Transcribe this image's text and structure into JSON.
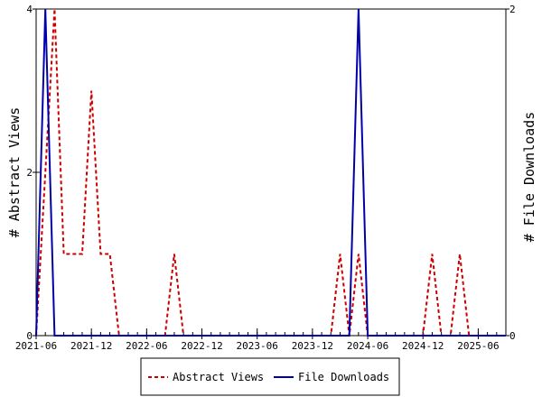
{
  "chart_data": {
    "type": "line",
    "title": "",
    "ylabel": "# Abstract Views",
    "y2label": "# File Downloads",
    "ylim": [
      0,
      4
    ],
    "y2lim": [
      0,
      2
    ],
    "yticks": [
      "0",
      "2",
      "4"
    ],
    "y2ticks": [
      "0",
      "2"
    ],
    "xlim": [
      "2021-06",
      "2025-09"
    ],
    "xticks": [
      "2021-06",
      "2021-12",
      "2022-06",
      "2022-12",
      "2023-06",
      "2023-12",
      "2024-06",
      "2024-12",
      "2025-06"
    ],
    "legend_position": "bottom",
    "grid": false,
    "x": [
      "2021-06",
      "2021-07",
      "2021-08",
      "2021-09",
      "2021-10",
      "2021-11",
      "2021-12",
      "2022-01",
      "2022-02",
      "2022-03",
      "2022-04",
      "2022-05",
      "2022-06",
      "2022-07",
      "2022-08",
      "2022-09",
      "2022-10",
      "2022-11",
      "2022-12",
      "2023-01",
      "2023-02",
      "2023-03",
      "2023-04",
      "2023-05",
      "2023-06",
      "2023-07",
      "2023-08",
      "2023-09",
      "2023-10",
      "2023-11",
      "2023-12",
      "2024-01",
      "2024-02",
      "2024-03",
      "2024-04",
      "2024-05",
      "2024-06",
      "2024-07",
      "2024-08",
      "2024-09",
      "2024-10",
      "2024-11",
      "2024-12",
      "2025-01",
      "2025-02",
      "2025-03",
      "2025-04",
      "2025-05",
      "2025-06",
      "2025-07",
      "2025-08",
      "2025-09"
    ],
    "series": [
      {
        "name": "Abstract Views",
        "axis": "left",
        "color": "#cc0000",
        "style": "dashed",
        "values": [
          0,
          2,
          4,
          1,
          1,
          1,
          3,
          1,
          1,
          0,
          0,
          0,
          0,
          0,
          0,
          1,
          0,
          0,
          0,
          0,
          0,
          0,
          0,
          0,
          0,
          0,
          0,
          0,
          0,
          0,
          0,
          0,
          0,
          1,
          0,
          1,
          0,
          0,
          0,
          0,
          0,
          0,
          0,
          1,
          0,
          0,
          1,
          0,
          0,
          0,
          0,
          0
        ]
      },
      {
        "name": "File Downloads",
        "axis": "right",
        "color": "#0000aa",
        "style": "solid",
        "values": [
          0,
          2,
          0,
          0,
          0,
          0,
          0,
          0,
          0,
          0,
          0,
          0,
          0,
          0,
          0,
          0,
          0,
          0,
          0,
          0,
          0,
          0,
          0,
          0,
          0,
          0,
          0,
          0,
          0,
          0,
          0,
          0,
          0,
          0,
          0,
          2,
          0,
          0,
          0,
          0,
          0,
          0,
          0,
          0,
          0,
          0,
          0,
          0,
          0,
          0,
          0,
          0
        ]
      }
    ]
  }
}
